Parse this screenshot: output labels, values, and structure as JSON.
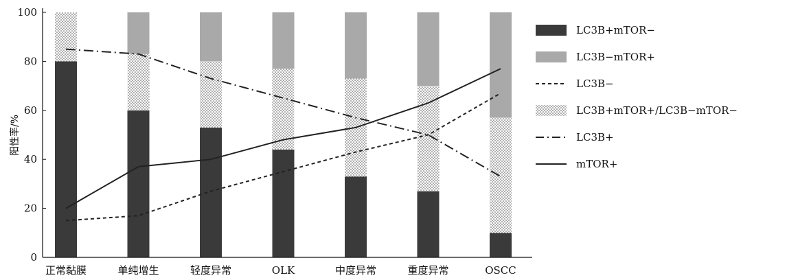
{
  "chart_data": {
    "type": "bar",
    "stacked": true,
    "ylabel": "阳性率/%",
    "ylim": [
      0,
      100
    ],
    "yticks": [
      0,
      20,
      40,
      60,
      80,
      100
    ],
    "categories": [
      "正常黏膜",
      "单纯增生",
      "轻度异常",
      "OLK",
      "中度异常",
      "重度异常",
      "OSCC"
    ],
    "bar_series": [
      {
        "name": "LC3B+mTOR−",
        "key": "dark",
        "color": "#3a3a3a",
        "values": [
          80,
          60,
          53,
          44,
          33,
          27,
          10
        ]
      },
      {
        "name": "LC3B+mTOR+/LC3B−mTOR−",
        "key": "dotted",
        "color": "#bdbdbd",
        "values": [
          20,
          23,
          27,
          33,
          40,
          43,
          47
        ]
      },
      {
        "name": "LC3B−mTOR+",
        "key": "light",
        "color": "#a9a9a9",
        "values": [
          0,
          17,
          20,
          23,
          27,
          30,
          43
        ]
      }
    ],
    "line_series": [
      {
        "name": "LC3B−",
        "key": "dashed",
        "color": "#222222",
        "values": [
          15,
          17,
          27,
          35,
          43,
          50,
          67
        ]
      },
      {
        "name": "LC3B+",
        "key": "dashdot",
        "color": "#222222",
        "values": [
          85,
          83,
          73,
          65,
          57,
          50,
          33
        ]
      },
      {
        "name": "mTOR+",
        "key": "solid",
        "color": "#222222",
        "values": [
          20,
          37,
          40,
          48,
          53,
          63,
          77
        ]
      }
    ],
    "legend": [
      {
        "label": "LC3B+mTOR−",
        "kind": "dark"
      },
      {
        "label": "LC3B−mTOR+",
        "kind": "light"
      },
      {
        "label": "LC3B−",
        "kind": "dashed"
      },
      {
        "label": "LC3B+mTOR+/LC3B−mTOR−",
        "kind": "dotted"
      },
      {
        "label": "LC3B+",
        "kind": "dashdot"
      },
      {
        "label": "mTOR+",
        "kind": "solid"
      }
    ],
    "legend_position": "right",
    "grid": false
  }
}
